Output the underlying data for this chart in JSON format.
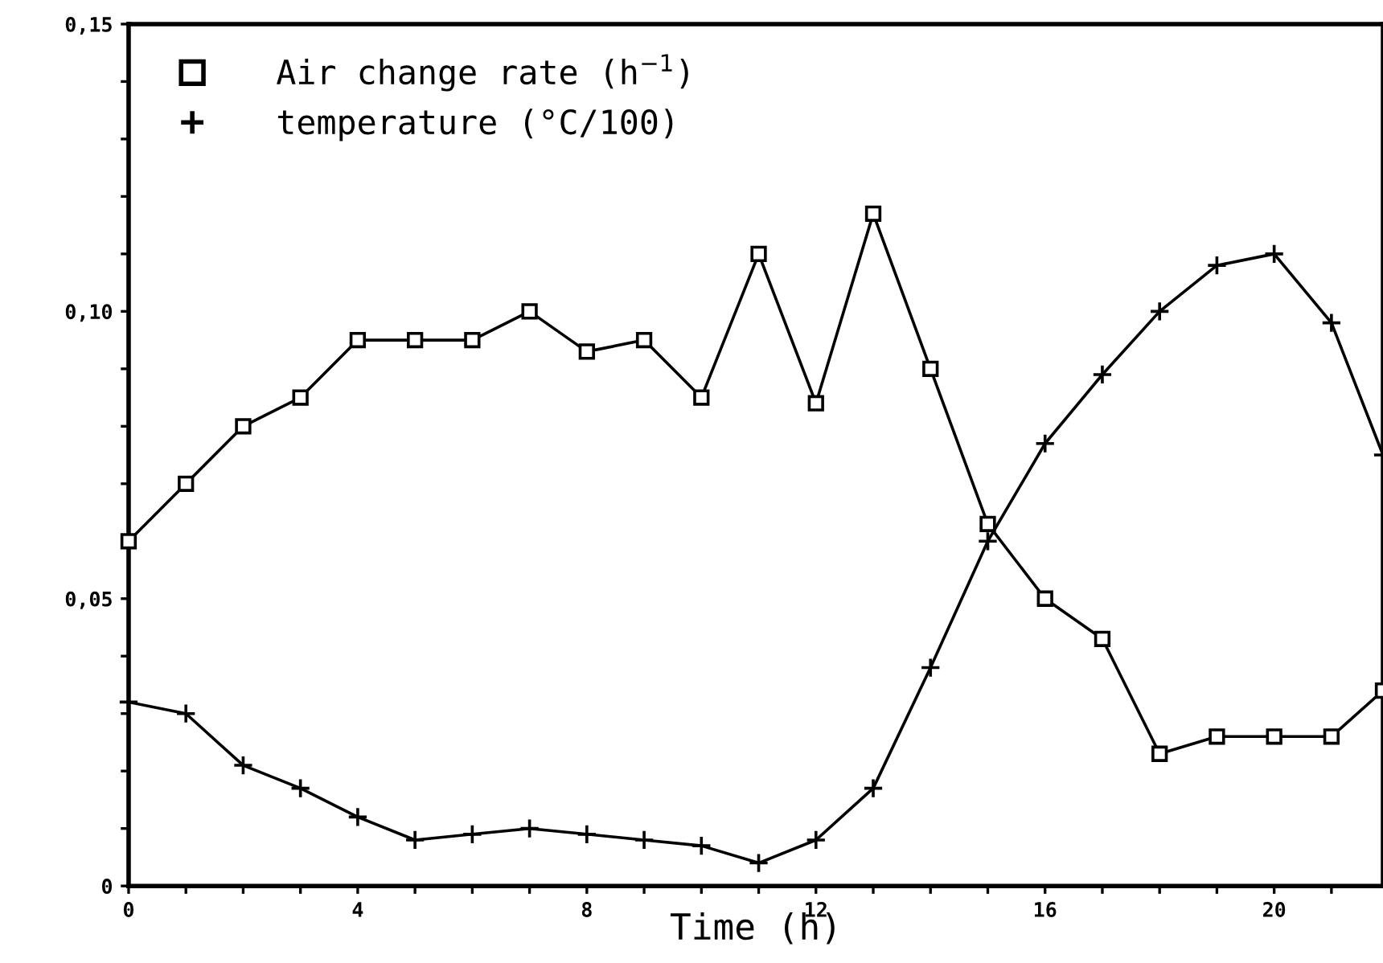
{
  "chart_data": {
    "type": "line",
    "xlabel": "Time (h)",
    "x": [
      0,
      1,
      2,
      3,
      4,
      5,
      6,
      7,
      8,
      9,
      10,
      11,
      12,
      13,
      14,
      15,
      16,
      17,
      18,
      19,
      20,
      21,
      21.9
    ],
    "series": [
      {
        "name": "Air change rate (h$^{−1}$)",
        "color": "#000000",
        "marker": "square",
        "values": [
          0.06,
          0.07,
          0.08,
          0.085,
          0.095,
          0.095,
          0.095,
          0.1,
          0.093,
          0.095,
          0.085,
          0.11,
          0.084,
          0.117,
          0.09,
          0.063,
          0.05,
          0.043,
          0.023,
          0.026,
          0.026,
          0.026,
          0.034
        ]
      },
      {
        "name": "temperature (°C/100)",
        "color": "#000000",
        "marker": "cross",
        "values": [
          0.032,
          0.03,
          0.021,
          0.017,
          0.012,
          0.008,
          0.009,
          0.01,
          0.009,
          0.008,
          0.007,
          0.004,
          0.008,
          0.017,
          0.038,
          0.06,
          0.077,
          0.089,
          0.1,
          0.108,
          0.11,
          0.098,
          0.075
        ]
      }
    ],
    "xlim": [
      0,
      21.9
    ],
    "ylim": [
      0,
      0.15
    ],
    "xticks": [
      0,
      {
        "value": 1,
        "label": null
      },
      {
        "value": 2,
        "label": null
      },
      {
        "value": 3,
        "label": null
      },
      4,
      {
        "value": 5,
        "label": null
      },
      {
        "value": 6,
        "label": null
      },
      {
        "value": 7,
        "label": null
      },
      8,
      {
        "value": 9,
        "label": null
      },
      {
        "value": 10,
        "label": null
      },
      {
        "value": 11,
        "label": null
      },
      12,
      {
        "value": 13,
        "label": null
      },
      {
        "value": 14,
        "label": null
      },
      {
        "value": 15,
        "label": null
      },
      16,
      {
        "value": 17,
        "label": null
      },
      {
        "value": 18,
        "label": null
      },
      {
        "value": 19,
        "label": null
      },
      20,
      {
        "value": 21,
        "label": null
      }
    ],
    "yticks": [
      0,
      {
        "value": 0.01,
        "label": null
      },
      {
        "value": 0.02,
        "label": null
      },
      {
        "value": 0.03,
        "label": null
      },
      {
        "value": 0.04,
        "label": null
      },
      {
        "value": 0.05,
        "label": "0,05"
      },
      {
        "value": 0.06,
        "label": null
      },
      {
        "value": 0.07,
        "label": null
      },
      {
        "value": 0.08,
        "label": null
      },
      {
        "value": 0.09,
        "label": null
      },
      {
        "value": 0.1,
        "label": "0,10"
      },
      {
        "value": 0.11,
        "label": null
      },
      {
        "value": 0.12,
        "label": null
      },
      {
        "value": 0.13,
        "label": null
      },
      {
        "value": 0.14,
        "label": null
      },
      {
        "value": 0.15,
        "label": "0,15"
      }
    ],
    "grid": false,
    "legend": "top left",
    "line_style": "solid"
  }
}
